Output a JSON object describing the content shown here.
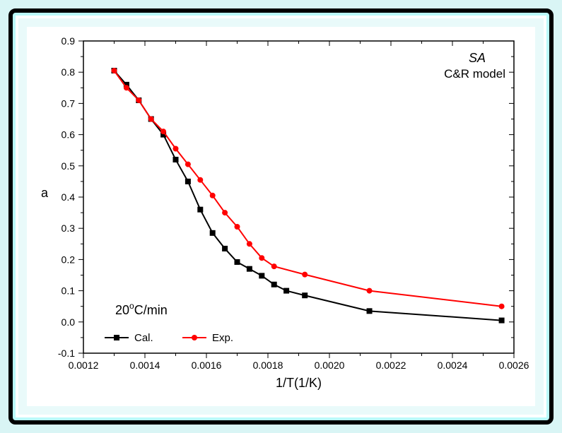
{
  "chart": {
    "type": "line",
    "background_color": "#ffffff",
    "frame_outer_color": "#000000",
    "frame_inner_colors": [
      "#bafafa",
      "#ffffff"
    ],
    "page_background": "#e9fafa",
    "xlabel": "1/T(1/K)",
    "ylabel": "a",
    "label_fontsize": 18,
    "tick_fontsize": 14,
    "x": {
      "lim": [
        0.0012,
        0.0026
      ],
      "ticks": [
        0.0012,
        0.0014,
        0.0016,
        0.0018,
        0.002,
        0.0022,
        0.0024,
        0.0026
      ],
      "tick_labels": [
        "0.0012",
        "0.0014",
        "0.0016",
        "0.0018",
        "0.0020",
        "0.0022",
        "0.0024",
        "0.0026"
      ],
      "minor_between": 1
    },
    "y": {
      "lim": [
        -0.1,
        0.9
      ],
      "ticks": [
        -0.1,
        0.0,
        0.1,
        0.2,
        0.3,
        0.4,
        0.5,
        0.6,
        0.7,
        0.8,
        0.9
      ],
      "tick_labels": [
        "-0.1",
        "0.0",
        "0.1",
        "0.2",
        "0.3",
        "0.4",
        "0.5",
        "0.6",
        "0.7",
        "0.8",
        "0.9"
      ],
      "minor_between": 1
    },
    "annotations": {
      "title_line1": "SA",
      "title_line1_style": "italic",
      "title_line2": "C&R model",
      "rate_prefix": "20",
      "rate_unit": "C/min",
      "rate_superscript": "o"
    },
    "legend": {
      "items": [
        {
          "key": "cal",
          "label": "Cal.",
          "marker": "square",
          "color": "#000000"
        },
        {
          "key": "exp",
          "label": "Exp.",
          "marker": "circle",
          "color": "#ff0000"
        }
      ]
    },
    "series": {
      "cal": {
        "label": "Cal.",
        "color": "#000000",
        "line_width": 2,
        "marker": "square",
        "marker_size": 7,
        "x": [
          0.0013,
          0.00134,
          0.00138,
          0.00142,
          0.00146,
          0.0015,
          0.00154,
          0.00158,
          0.00162,
          0.00166,
          0.0017,
          0.00174,
          0.00178,
          0.00182,
          0.00186,
          0.00192,
          0.00213,
          0.00256
        ],
        "y": [
          0.805,
          0.76,
          0.71,
          0.65,
          0.6,
          0.52,
          0.45,
          0.36,
          0.285,
          0.235,
          0.192,
          0.17,
          0.148,
          0.12,
          0.1,
          0.085,
          0.035,
          0.005
        ]
      },
      "exp": {
        "label": "Exp.",
        "color": "#ff0000",
        "line_width": 2,
        "marker": "circle",
        "marker_size": 7,
        "x": [
          0.0013,
          0.00134,
          0.00138,
          0.00142,
          0.00146,
          0.0015,
          0.00154,
          0.00158,
          0.00162,
          0.00166,
          0.0017,
          0.00174,
          0.00178,
          0.00182,
          0.00192,
          0.00213,
          0.00256
        ],
        "y": [
          0.805,
          0.75,
          0.71,
          0.65,
          0.61,
          0.555,
          0.505,
          0.455,
          0.405,
          0.35,
          0.305,
          0.25,
          0.205,
          0.178,
          0.152,
          0.1,
          0.05
        ]
      }
    }
  }
}
